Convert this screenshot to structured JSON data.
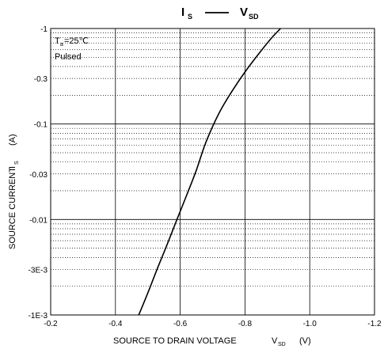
{
  "chart_data": {
    "type": "line",
    "title": {
      "left_main": "I",
      "left_sub": "S",
      "right_main": "V",
      "right_sub": "SD"
    },
    "xlabel": {
      "text": "SOURCE TO DRAIN VOLTAGE",
      "symbol": "V",
      "symbol_sub": "SD",
      "unit": "(V)"
    },
    "ylabel": {
      "text": "SOURCE CURRENT",
      "symbol": "I",
      "symbol_sub": "S",
      "unit": "(A)"
    },
    "annotations": {
      "ta_main": "T",
      "ta_sub": "a",
      "ta_value": "=25℃",
      "mode": "Pulsed"
    },
    "x_axis": {
      "range": [
        -0.2,
        -1.2
      ],
      "ticks": [
        -0.2,
        -0.4,
        -0.6,
        -0.8,
        -1.0,
        -1.2
      ],
      "tick_labels": [
        "-0.2",
        "-0.4",
        "-0.6",
        "-0.8",
        "-1.0",
        "-1.2"
      ],
      "major_grid": [
        -0.4,
        -0.6,
        -0.8,
        -1.0
      ]
    },
    "y_axis": {
      "scale": "log",
      "range": [
        -0.001,
        -1
      ],
      "ticks": [
        -1,
        -0.3,
        -0.1,
        -0.03,
        -0.01,
        -0.003,
        -0.001
      ],
      "tick_labels": [
        "-1",
        "-0.3",
        "-0.1",
        "-0.03",
        "-0.01",
        "-3E-3",
        "-1E-3"
      ],
      "major_grid": [
        -0.1,
        -0.01
      ],
      "minor_grid": true
    },
    "series": [
      {
        "x": [
          -0.472,
          -0.5,
          -0.53,
          -0.56,
          -0.59,
          -0.62,
          -0.65,
          -0.68,
          -0.72,
          -0.76,
          -0.8,
          -0.84,
          -0.88,
          -0.91
        ],
        "y": [
          -0.001,
          -0.0017,
          -0.0031,
          -0.0055,
          -0.01,
          -0.018,
          -0.033,
          -0.065,
          -0.13,
          -0.22,
          -0.35,
          -0.53,
          -0.78,
          -1.0
        ]
      }
    ]
  }
}
